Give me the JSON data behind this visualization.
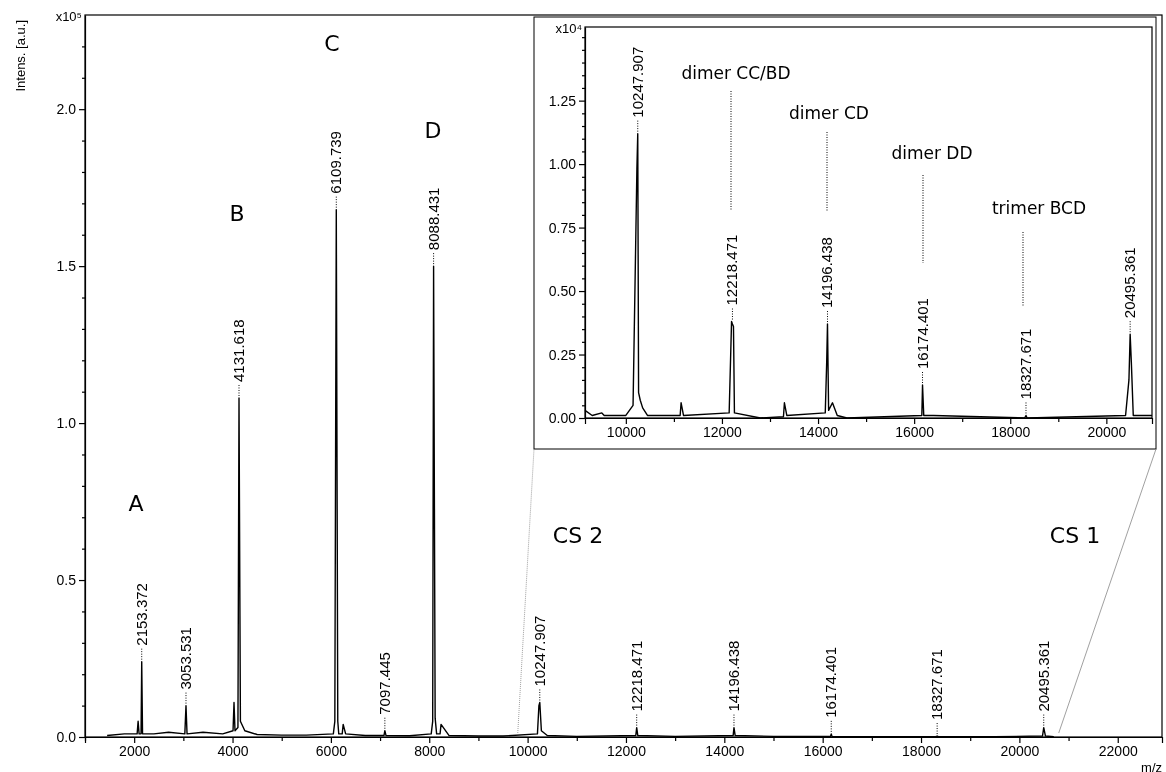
{
  "chart_data": [
    {
      "type": "line",
      "xlabel": "m/z",
      "ylabel": "Intens. [a.u.]",
      "xlim": [
        1000,
        22900
      ],
      "ylim": [
        0,
        2.3
      ],
      "xticks": [
        {
          "value": 1000,
          "label": null
        },
        2000,
        {
          "value": 3000,
          "label": null
        },
        4000,
        {
          "value": 5000,
          "label": null
        },
        6000,
        {
          "value": 7000,
          "label": null
        },
        8000,
        {
          "value": 9000,
          "label": null
        },
        10000,
        {
          "value": 11000,
          "label": null
        },
        12000,
        {
          "value": 13000,
          "label": null
        },
        14000,
        {
          "value": 15000,
          "label": null
        },
        16000,
        {
          "value": 17000,
          "label": null
        },
        18000,
        {
          "value": 19000,
          "label": null
        },
        20000,
        {
          "value": 21000,
          "label": null
        },
        22000
      ],
      "yticks": [
        "0.0",
        {
          "value": 0.1,
          "label": null
        },
        {
          "value": 0.2,
          "label": null
        },
        {
          "value": 0.3,
          "label": null
        },
        {
          "value": 0.4,
          "label": null
        },
        {
          "value": 0.5,
          "label": "0.5"
        },
        {
          "value": 0.6,
          "label": null
        },
        {
          "value": 0.7,
          "label": null
        },
        {
          "value": 0.8,
          "label": null
        },
        {
          "value": 0.9,
          "label": null
        },
        {
          "value": 1.0,
          "label": "1.0"
        },
        {
          "value": 1.1,
          "label": null
        },
        {
          "value": 1.2,
          "label": null
        },
        {
          "value": 1.3,
          "label": null
        },
        {
          "value": 1.4,
          "label": null
        },
        {
          "value": 1.5,
          "label": "1.5"
        },
        {
          "value": 1.6,
          "label": null
        },
        {
          "value": 1.7,
          "label": null
        },
        {
          "value": 1.8,
          "label": null
        },
        {
          "value": 1.9,
          "label": null
        },
        {
          "value": 2.0,
          "label": "2.0"
        },
        {
          "value": 2.1,
          "label": null
        },
        {
          "value": 2.2,
          "label": null
        }
      ],
      "marker": "none",
      "line_style": "solid",
      "series": [
        {
          "color": "#000000",
          "x": [
            1450,
            1800,
            2060,
            2080,
            2100,
            2140,
            2153.372,
            2170,
            2400,
            2700,
            3030,
            3053.531,
            3075,
            3400,
            3800,
            4010,
            4030,
            4050,
            4110,
            4131.618,
            4160,
            4250,
            4500,
            5000,
            5500,
            6050,
            6080,
            6109.739,
            6140,
            6160,
            6230,
            6250,
            6300,
            6700,
            7080,
            7097.445,
            7120,
            7600,
            8040,
            8070,
            8088.431,
            8120,
            8150,
            8220,
            8240,
            8400,
            9000,
            9500,
            10200,
            10230,
            10247.907,
            10280,
            10400,
            11000,
            12200,
            12218.471,
            12240,
            13000,
            14180,
            14196.438,
            14220,
            15000,
            16160,
            16174.401,
            16190,
            17000,
            18300,
            18327.671,
            18350,
            19500,
            20470,
            20495.361,
            20530,
            20700
          ],
          "values": [
            0.005,
            0.01,
            0.01,
            0.05,
            0.01,
            0.01,
            0.24,
            0.01,
            0.01,
            0.015,
            0.01,
            0.1,
            0.01,
            0.015,
            0.01,
            0.02,
            0.11,
            0.02,
            0.03,
            1.08,
            0.05,
            0.02,
            0.008,
            0.006,
            0.006,
            0.01,
            0.05,
            1.68,
            0.05,
            0.01,
            0.01,
            0.04,
            0.01,
            0.005,
            0.005,
            0.02,
            0.005,
            0.004,
            0.01,
            0.05,
            1.5,
            0.06,
            0.01,
            0.01,
            0.04,
            0.005,
            0.003,
            0.003,
            0.01,
            0.1,
            0.11,
            0.02,
            0.005,
            0.002,
            0.005,
            0.03,
            0.005,
            0.002,
            0.005,
            0.03,
            0.005,
            0.002,
            0.002,
            0.01,
            0.002,
            0.001,
            0.001,
            0.003,
            0.001,
            0.001,
            0.003,
            0.03,
            0.003,
            0.001
          ]
        }
      ],
      "annotations": [
        "x10⁵",
        {
          "text": "2153.372",
          "x": 2153.372,
          "y": 0.24
        },
        {
          "text": "3053.531",
          "x": 3053.531,
          "y": 0.1
        },
        {
          "text": "4131.618",
          "x": 4131.618,
          "y": 1.08
        },
        {
          "text": "6109.739",
          "x": 6109.739,
          "y": 1.68
        },
        {
          "text": "7097.445",
          "x": 7097.445,
          "y": 0.02
        },
        {
          "text": "8088.431",
          "x": 8088.431,
          "y": 1.5
        },
        {
          "text": "10247.907",
          "x": 10247.907,
          "y": 0.11
        },
        {
          "text": "12218.471",
          "x": 12218.471,
          "y": 0.03
        },
        {
          "text": "14196.438",
          "x": 14196.438,
          "y": 0.03
        },
        {
          "text": "16174.401",
          "x": 16174.401,
          "y": 0.01
        },
        {
          "text": "18327.671",
          "x": 18327.671,
          "y": 0.003
        },
        {
          "text": "20495.361",
          "x": 20495.361,
          "y": 0.03
        },
        "A",
        "B",
        "C",
        "D",
        "CS 2",
        "CS 1"
      ]
    },
    {
      "type": "line",
      "xlim": [
        9150,
        20950
      ],
      "ylim": [
        0,
        1.54
      ],
      "xticks": [
        10000,
        {
          "value": 11000,
          "label": null
        },
        12000,
        {
          "value": 13000,
          "label": null
        },
        14000,
        {
          "value": 15000,
          "label": null
        },
        16000,
        {
          "value": 17000,
          "label": null
        },
        18000,
        {
          "value": 19000,
          "label": null
        },
        20000
      ],
      "yticks": [
        "0.00",
        {
          "value": 0.05,
          "label": null
        },
        {
          "value": 0.1,
          "label": null
        },
        {
          "value": 0.15,
          "label": null
        },
        {
          "value": 0.2,
          "label": null
        },
        {
          "value": 0.25,
          "label": "0.25"
        },
        {
          "value": 0.3,
          "label": null
        },
        {
          "value": 0.35,
          "label": null
        },
        {
          "value": 0.4,
          "label": null
        },
        {
          "value": 0.45,
          "label": null
        },
        {
          "value": 0.5,
          "label": "0.50"
        },
        {
          "value": 0.55,
          "label": null
        },
        {
          "value": 0.6,
          "label": null
        },
        {
          "value": 0.65,
          "label": null
        },
        {
          "value": 0.7,
          "label": null
        },
        {
          "value": 0.75,
          "label": "0.75"
        },
        {
          "value": 0.8,
          "label": null
        },
        {
          "value": 0.85,
          "label": null
        },
        {
          "value": 0.9,
          "label": null
        },
        {
          "value": 0.95,
          "label": null
        },
        {
          "value": 1.0,
          "label": "1.00"
        },
        {
          "value": 1.05,
          "label": null
        },
        {
          "value": 1.1,
          "label": null
        },
        {
          "value": 1.15,
          "label": null
        },
        {
          "value": 1.2,
          "label": null
        },
        {
          "value": 1.25,
          "label": "1.25"
        },
        {
          "value": 1.3,
          "label": null
        },
        {
          "value": 1.35,
          "label": null
        },
        {
          "value": 1.4,
          "label": null
        },
        {
          "value": 1.45,
          "label": null
        },
        {
          "value": 1.5,
          "label": null
        }
      ],
      "marker": "none",
      "line_style": "solid",
      "series": [
        {
          "color": "#000000",
          "x": [
            9150,
            9300,
            9500,
            9550,
            10000,
            10150,
            10200,
            10230,
            10247.907,
            10265,
            10300,
            10350,
            10450,
            11100,
            11130,
            11150,
            11200,
            12150,
            12200,
            12218.471,
            12240,
            12260,
            12800,
            13280,
            13300,
            13350,
            14150,
            14180,
            14196.438,
            14220,
            14300,
            14400,
            14600,
            16160,
            16174.401,
            16200,
            16400,
            18300,
            18327.671,
            18350,
            20400,
            20470,
            20495.361,
            20520,
            20560,
            20950
          ],
          "values": [
            0.03,
            0.01,
            0.02,
            0.01,
            0.01,
            0.05,
            0.63,
            0.98,
            1.12,
            0.1,
            0.07,
            0.04,
            0.01,
            0.01,
            0.01,
            0.06,
            0.01,
            0.02,
            0.38,
            0.37,
            0.36,
            0.02,
            0.0,
            0.005,
            0.06,
            0.01,
            0.02,
            0.22,
            0.37,
            0.03,
            0.06,
            0.01,
            0.0,
            0.01,
            0.13,
            0.01,
            0.01,
            0.0,
            0.01,
            0.0,
            0.01,
            0.15,
            0.33,
            0.22,
            0.01,
            0.01
          ]
        }
      ],
      "annotations": [
        "x10⁴",
        {
          "text": "10247.907",
          "x": 10247.907,
          "y": 1.12
        },
        {
          "text": "12218.471",
          "x": 12218.471,
          "y": 0.38
        },
        {
          "text": "14196.438",
          "x": 14196.438,
          "y": 0.37
        },
        {
          "text": "16174.401",
          "x": 16174.401,
          "y": 0.13
        },
        {
          "text": "18327.671",
          "x": 18327.671,
          "y": 0.01
        },
        {
          "text": "20495.361",
          "x": 20495.361,
          "y": 0.33
        },
        "dimer CC/BD",
        "dimer CD",
        "dimer DD",
        "trimer BCD"
      ]
    }
  ]
}
